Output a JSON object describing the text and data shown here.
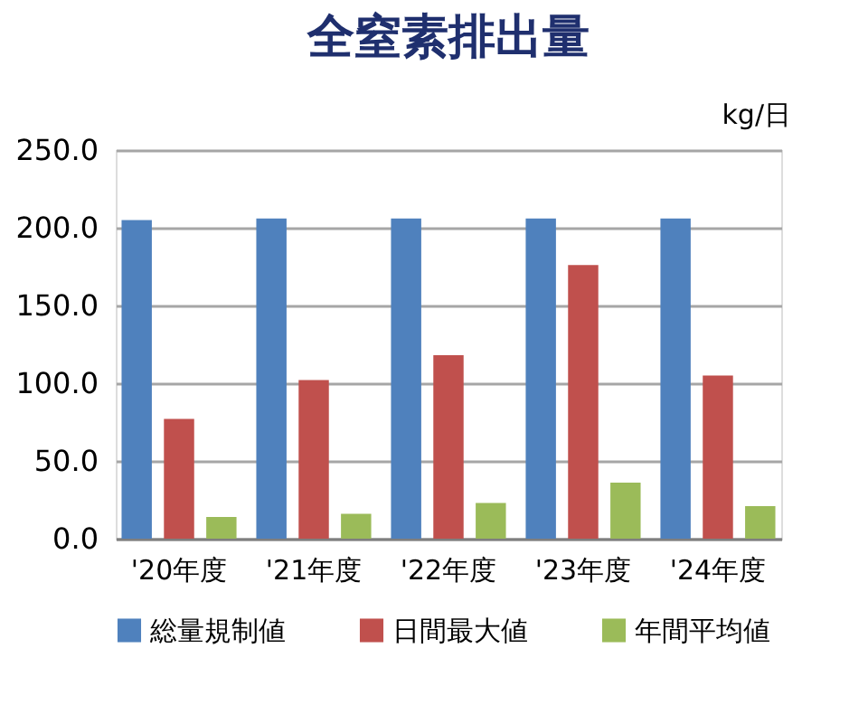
{
  "chart_data": {
    "type": "bar",
    "title": "全窒素排出量",
    "ylabel": "kg/日",
    "categories": [
      "'20年度",
      "'21年度",
      "'22年度",
      "'23年度",
      "'24年度"
    ],
    "series": [
      {
        "name": "総量規制値",
        "color": "#4f81bd",
        "values": [
          205,
          206,
          206,
          206,
          206
        ]
      },
      {
        "name": "日間最大値",
        "color": "#c0504d",
        "values": [
          77,
          102,
          118,
          176,
          105
        ]
      },
      {
        "name": "年間平均値",
        "color": "#9bbb59",
        "values": [
          14,
          16,
          23,
          36,
          21
        ]
      }
    ],
    "ylim": [
      0,
      250
    ],
    "yticks": [
      {
        "value": 0,
        "label": "0.0"
      },
      {
        "value": 50,
        "label": "50.0"
      },
      {
        "value": 100,
        "label": "100.0"
      },
      {
        "value": 150,
        "label": "150.0"
      },
      {
        "value": 200,
        "label": "200.0"
      },
      {
        "value": 250,
        "label": "250.0"
      }
    ],
    "grid": "y",
    "legend": "bottom"
  }
}
